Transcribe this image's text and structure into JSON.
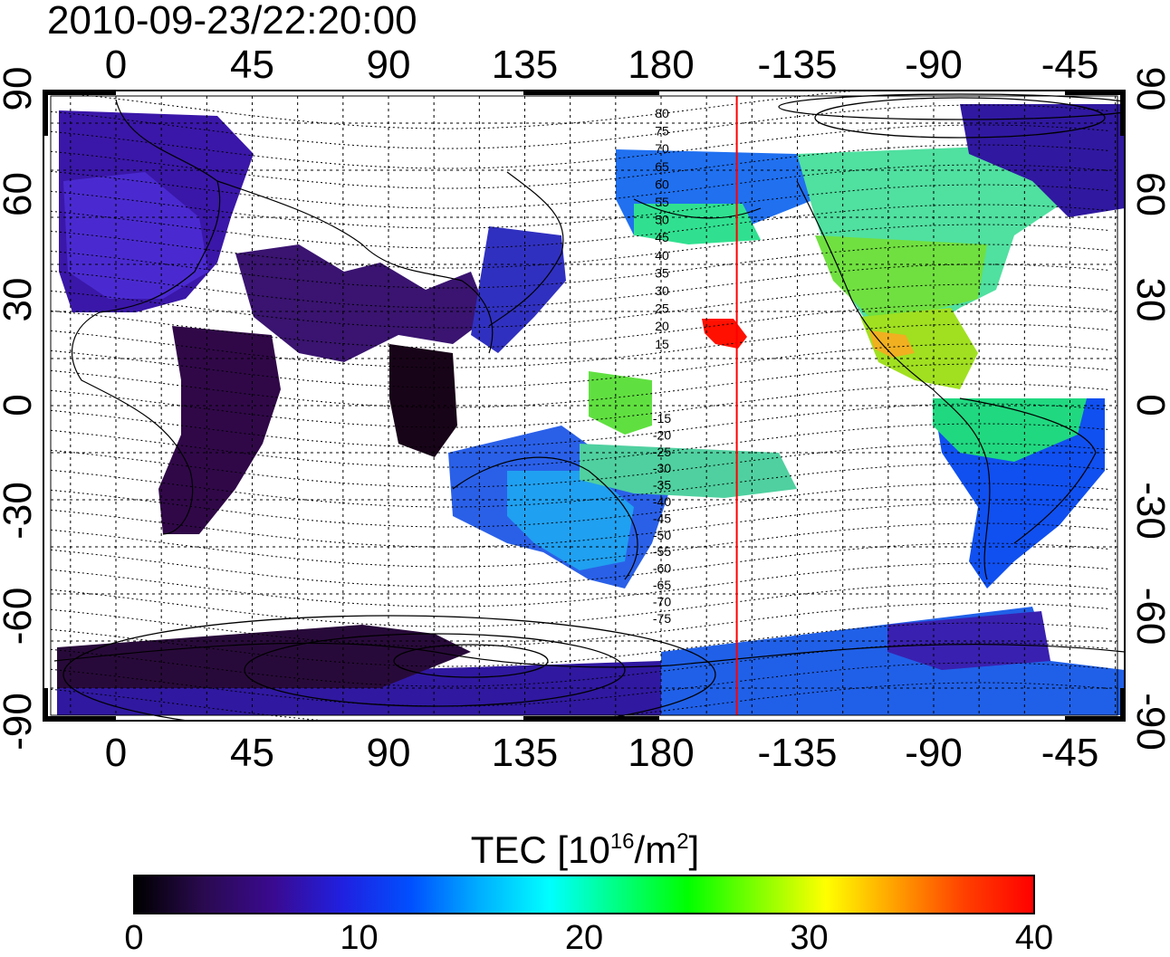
{
  "title": "2010-09-23/22:20:00",
  "map": {
    "x_ticks": [
      "0",
      "45",
      "90",
      "135",
      "180",
      "-135",
      "-90",
      "-45"
    ],
    "y_ticks": [
      "90",
      "60",
      "30",
      "0",
      "-30",
      "-60",
      "-90"
    ],
    "mlat_labels": [
      "80",
      "75",
      "70",
      "65",
      "60",
      "55",
      "50",
      "45",
      "40",
      "35",
      "30",
      "25",
      "20",
      "15",
      "-15",
      "-20",
      "-25",
      "-30",
      "-35",
      "-40",
      "-45",
      "-50",
      "-55",
      "-60",
      "-65",
      "-70",
      "-75"
    ],
    "marker_longitude": -155,
    "marker_color": "#ff0000"
  },
  "colorbar": {
    "title_prefix": "TEC  [10",
    "title_exp1": "16",
    "title_mid": "/m",
    "title_exp2": "2",
    "title_suffix": "]",
    "labels": [
      "0",
      "10",
      "20",
      "30",
      "40"
    ],
    "min": 0,
    "max": 40,
    "colors": [
      "#000000",
      "#2a0a50",
      "#3a0a90",
      "#2020e0",
      "#0050ff",
      "#00b0ff",
      "#00ffff",
      "#00ff80",
      "#00ff00",
      "#80ff00",
      "#ffff00",
      "#ffa000",
      "#ff4000",
      "#ff0000"
    ]
  }
}
